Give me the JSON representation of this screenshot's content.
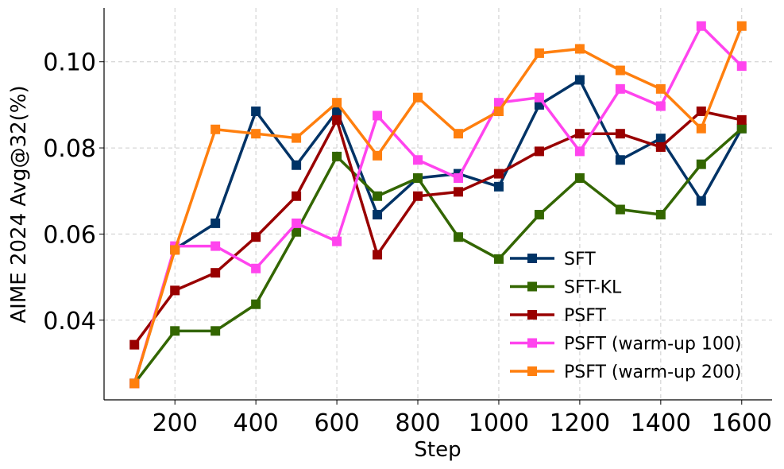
{
  "chart_data": {
    "type": "line",
    "title": "",
    "xlabel": "Step",
    "ylabel": "AIME 2024 Avg@32(%)",
    "x": [
      100,
      200,
      300,
      400,
      500,
      600,
      700,
      800,
      900,
      1000,
      1100,
      1200,
      1300,
      1400,
      1500,
      1600
    ],
    "xlim": [
      25,
      1675
    ],
    "ylim": [
      0.0215,
      0.1125
    ],
    "xticks": [
      200,
      400,
      600,
      800,
      1000,
      1200,
      1400,
      1600
    ],
    "xtick_labels": [
      "200",
      "400",
      "600",
      "800",
      "1000",
      "1200",
      "1400",
      "1600"
    ],
    "yticks": [
      0.04,
      0.06,
      0.08,
      0.1
    ],
    "ytick_labels": [
      "0.04",
      "0.06",
      "0.08",
      "0.10"
    ],
    "grid": true,
    "legend_position": "lower-right",
    "series": [
      {
        "name": "SFT",
        "color": "#003366",
        "values": [
          0.0253,
          0.0565,
          0.0625,
          0.0885,
          0.076,
          0.0885,
          0.0645,
          0.073,
          0.074,
          0.071,
          0.09,
          0.0958,
          0.0772,
          0.0822,
          0.0677,
          0.0845
        ]
      },
      {
        "name": "SFT-KL",
        "color": "#336600",
        "values": [
          0.0253,
          0.0375,
          0.0375,
          0.0437,
          0.0605,
          0.078,
          0.0688,
          0.073,
          0.0593,
          0.0542,
          0.0645,
          0.073,
          0.0657,
          0.0645,
          0.0762,
          0.0845
        ]
      },
      {
        "name": "PSFT",
        "color": "#990000",
        "values": [
          0.0343,
          0.0469,
          0.051,
          0.0593,
          0.0688,
          0.0865,
          0.0552,
          0.0688,
          0.0698,
          0.074,
          0.0792,
          0.0833,
          0.0833,
          0.0802,
          0.0885,
          0.0865
        ]
      },
      {
        "name": "PSFT (warm-up 100)",
        "color": "#ff44ee",
        "values": [
          0.0253,
          0.0572,
          0.0572,
          0.052,
          0.0625,
          0.0583,
          0.0875,
          0.0772,
          0.073,
          0.0905,
          0.0917,
          0.0792,
          0.0937,
          0.0897,
          0.1083,
          0.099
        ]
      },
      {
        "name": "PSFT (warm-up 200)",
        "color": "#ff7f0e",
        "values": [
          0.0253,
          0.0563,
          0.0843,
          0.0833,
          0.0823,
          0.0905,
          0.0782,
          0.0917,
          0.0833,
          0.0885,
          0.102,
          0.103,
          0.098,
          0.0937,
          0.0845,
          0.1083
        ]
      }
    ]
  }
}
